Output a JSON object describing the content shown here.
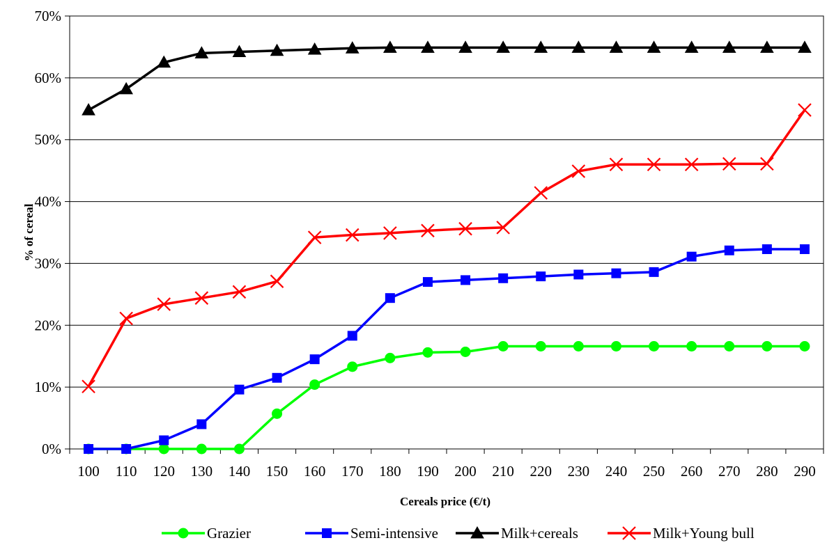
{
  "chart_data": {
    "type": "line",
    "title": "",
    "xlabel": "Cereals price (€/t)",
    "ylabel": "% of cereal",
    "x": [
      100,
      110,
      120,
      130,
      140,
      150,
      160,
      170,
      180,
      190,
      200,
      210,
      220,
      230,
      240,
      250,
      260,
      270,
      280,
      290
    ],
    "ylim": [
      0,
      70
    ],
    "yticks": [
      0,
      10,
      20,
      30,
      40,
      50,
      60,
      70
    ],
    "ytick_labels": [
      "0%",
      "10%",
      "20%",
      "30%",
      "40%",
      "50%",
      "60%",
      "70%"
    ],
    "grid": "horizontal",
    "legend_position": "bottom",
    "series": [
      {
        "name": "Grazier",
        "color": "#00ff00",
        "marker": "circle",
        "values": [
          0,
          0,
          0,
          0,
          0,
          5.7,
          10.4,
          13.3,
          14.7,
          15.6,
          15.7,
          16.6,
          16.6,
          16.6,
          16.6,
          16.6,
          16.6,
          16.6,
          16.6,
          16.6
        ]
      },
      {
        "name": "Semi-intensive",
        "color": "#0000ff",
        "marker": "square",
        "values": [
          0,
          0,
          1.4,
          4.0,
          9.6,
          11.5,
          14.5,
          18.3,
          24.4,
          27.0,
          27.3,
          27.6,
          27.9,
          28.2,
          28.4,
          28.6,
          31.1,
          32.1,
          32.3,
          32.3
        ]
      },
      {
        "name": "Milk+cereals",
        "color": "#000000",
        "marker": "triangle",
        "values": [
          54.8,
          58.2,
          62.5,
          64.0,
          64.2,
          64.4,
          64.6,
          64.8,
          64.9,
          64.9,
          64.9,
          64.9,
          64.9,
          64.9,
          64.9,
          64.9,
          64.9,
          64.9,
          64.9,
          64.9
        ]
      },
      {
        "name": "Milk+Young bull",
        "color": "#ff0000",
        "marker": "x",
        "values": [
          10.1,
          21.1,
          23.4,
          24.4,
          25.4,
          27.1,
          34.2,
          34.6,
          34.9,
          35.3,
          35.6,
          35.8,
          41.4,
          44.9,
          46.0,
          46.0,
          46.0,
          46.1,
          46.1,
          54.8
        ]
      }
    ]
  }
}
